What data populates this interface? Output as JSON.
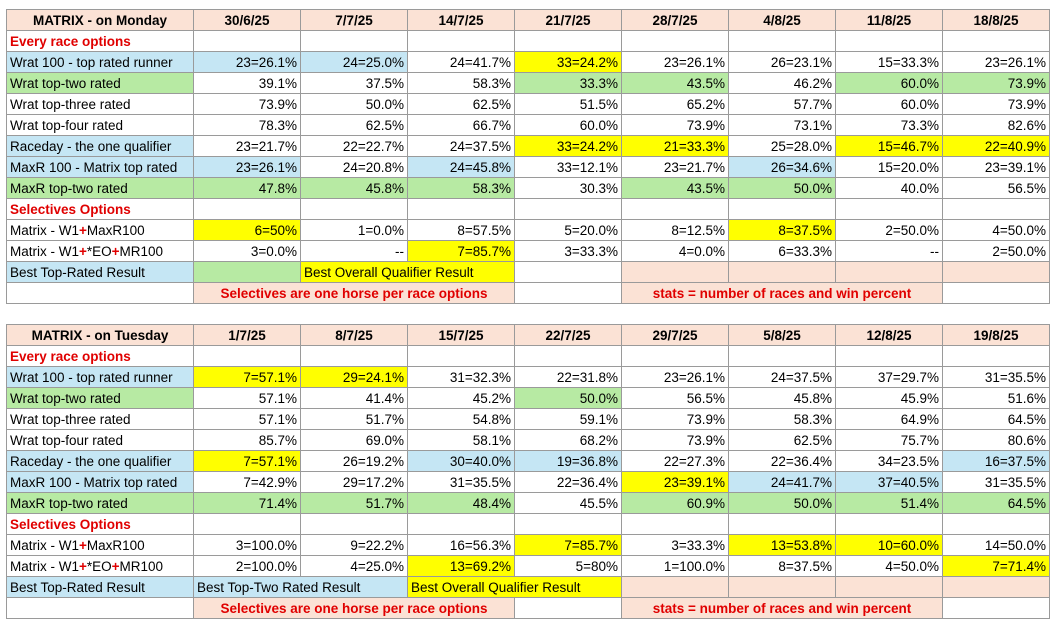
{
  "monday": {
    "title": "MATRIX - on Monday",
    "dates": [
      "30/6/25",
      "7/7/25",
      "14/7/25",
      "21/7/25",
      "28/7/25",
      "4/8/25",
      "11/8/25",
      "18/8/25"
    ],
    "every_race_label": "Every race options",
    "rows": [
      {
        "label": "Wrat 100 - top rated runner",
        "label_color": "blue",
        "values": [
          "23=26.1%",
          "24=25.0%",
          "24=41.7%",
          "33=24.2%",
          "23=26.1%",
          "26=23.1%",
          "15=33.3%",
          "23=26.1%"
        ],
        "colors": [
          "blue",
          "blue",
          "",
          "yellow",
          "",
          "",
          "",
          ""
        ]
      },
      {
        "label": "Wrat top-two rated",
        "label_color": "green",
        "values": [
          "39.1%",
          "37.5%",
          "58.3%",
          "33.3%",
          "43.5%",
          "46.2%",
          "60.0%",
          "73.9%"
        ],
        "colors": [
          "",
          "",
          "",
          "green",
          "green",
          "",
          "green",
          "green"
        ]
      },
      {
        "label": "Wrat top-three rated",
        "label_color": "",
        "values": [
          "73.9%",
          "50.0%",
          "62.5%",
          "51.5%",
          "65.2%",
          "57.7%",
          "60.0%",
          "73.9%"
        ],
        "colors": [
          "",
          "",
          "",
          "",
          "",
          "",
          "",
          ""
        ]
      },
      {
        "label": "Wrat top-four rated",
        "label_color": "",
        "values": [
          "78.3%",
          "62.5%",
          "66.7%",
          "60.0%",
          "73.9%",
          "73.1%",
          "73.3%",
          "82.6%"
        ],
        "colors": [
          "",
          "",
          "",
          "",
          "",
          "",
          "",
          ""
        ]
      },
      {
        "label": "Raceday - the one qualifier",
        "label_color": "blue",
        "values": [
          "23=21.7%",
          "22=22.7%",
          "24=37.5%",
          "33=24.2%",
          "21=33.3%",
          "25=28.0%",
          "15=46.7%",
          "22=40.9%"
        ],
        "colors": [
          "",
          "",
          "",
          "yellow",
          "yellow",
          "",
          "yellow",
          "yellow"
        ]
      },
      {
        "label": "MaxR 100 - Matrix top rated",
        "label_color": "blue",
        "values": [
          "23=26.1%",
          "24=20.8%",
          "24=45.8%",
          "33=12.1%",
          "23=21.7%",
          "26=34.6%",
          "15=20.0%",
          "23=39.1%"
        ],
        "colors": [
          "blue",
          "",
          "blue",
          "",
          "",
          "blue",
          "",
          ""
        ]
      },
      {
        "label": "MaxR top-two rated",
        "label_color": "green",
        "values": [
          "47.8%",
          "45.8%",
          "58.3%",
          "30.3%",
          "43.5%",
          "50.0%",
          "40.0%",
          "56.5%"
        ],
        "colors": [
          "green",
          "green",
          "green",
          "",
          "green",
          "green",
          "",
          ""
        ]
      }
    ],
    "selectives_label": "Selectives Options",
    "sel_rows": [
      {
        "prefix": "Matrix - W1",
        "plus1": "+",
        "mid": "MaxR100",
        "plus2": "",
        "tail": "",
        "values": [
          "6=50%",
          "1=0.0%",
          "8=57.5%",
          "5=20.0%",
          "8=12.5%",
          "8=37.5%",
          "2=50.0%",
          "4=50.0%"
        ],
        "colors": [
          "yellow",
          "",
          "",
          "",
          "",
          "yellow",
          "",
          ""
        ]
      },
      {
        "prefix": "Matrix - W1",
        "plus1": "+",
        "mid": "*EO",
        "plus2": "+",
        "tail": "MR100",
        "values": [
          "3=0.0%",
          "--",
          "7=85.7%",
          "3=33.3%",
          "4=0.0%",
          "6=33.3%",
          "--",
          "2=50.0%"
        ],
        "colors": [
          "",
          "",
          "yellow",
          "",
          "",
          "",
          "",
          ""
        ]
      }
    ],
    "legend": {
      "best_top_rated": "Best Top-Rated Result",
      "best_overall": "Best Overall Qualifier Result"
    },
    "note_left": "Selectives are one horse per race options",
    "note_right": "stats = number of races and win percent"
  },
  "tuesday": {
    "title": "MATRIX - on Tuesday",
    "dates": [
      "1/7/25",
      "8/7/25",
      "15/7/25",
      "22/7/25",
      "29/7/25",
      "5/8/25",
      "12/8/25",
      "19/8/25"
    ],
    "every_race_label": "Every race options",
    "rows": [
      {
        "label": "Wrat 100 - top rated runner",
        "label_color": "blue",
        "values": [
          "7=57.1%",
          "29=24.1%",
          "31=32.3%",
          "22=31.8%",
          "23=26.1%",
          "24=37.5%",
          "37=29.7%",
          "31=35.5%"
        ],
        "colors": [
          "yellow",
          "yellow",
          "",
          "",
          "",
          "",
          "",
          ""
        ]
      },
      {
        "label": "Wrat top-two rated",
        "label_color": "green",
        "values": [
          "57.1%",
          "41.4%",
          "45.2%",
          "50.0%",
          "56.5%",
          "45.8%",
          "45.9%",
          "51.6%"
        ],
        "colors": [
          "",
          "",
          "",
          "green",
          "",
          "",
          "",
          ""
        ]
      },
      {
        "label": "Wrat top-three rated",
        "label_color": "",
        "values": [
          "57.1%",
          "51.7%",
          "54.8%",
          "59.1%",
          "73.9%",
          "58.3%",
          "64.9%",
          "64.5%"
        ],
        "colors": [
          "",
          "",
          "",
          "",
          "",
          "",
          "",
          ""
        ]
      },
      {
        "label": "Wrat top-four rated",
        "label_color": "",
        "values": [
          "85.7%",
          "69.0%",
          "58.1%",
          "68.2%",
          "73.9%",
          "62.5%",
          "75.7%",
          "80.6%"
        ],
        "colors": [
          "",
          "",
          "",
          "",
          "",
          "",
          "",
          ""
        ]
      },
      {
        "label": "Raceday - the one qualifier",
        "label_color": "blue",
        "values": [
          "7=57.1%",
          "26=19.2%",
          "30=40.0%",
          "19=36.8%",
          "22=27.3%",
          "22=36.4%",
          "34=23.5%",
          "16=37.5%"
        ],
        "colors": [
          "yellow",
          "",
          "blue",
          "blue",
          "",
          "",
          "",
          "blue"
        ]
      },
      {
        "label": "MaxR 100 - Matrix top rated",
        "label_color": "blue",
        "values": [
          "7=42.9%",
          "29=17.2%",
          "31=35.5%",
          "22=36.4%",
          "23=39.1%",
          "24=41.7%",
          "37=40.5%",
          "31=35.5%"
        ],
        "colors": [
          "",
          "",
          "",
          "",
          "yellow",
          "blue",
          "blue",
          ""
        ]
      },
      {
        "label": "MaxR top-two rated",
        "label_color": "green",
        "values": [
          "71.4%",
          "51.7%",
          "48.4%",
          "45.5%",
          "60.9%",
          "50.0%",
          "51.4%",
          "64.5%"
        ],
        "colors": [
          "green",
          "green",
          "green",
          "",
          "green",
          "green",
          "green",
          "green"
        ]
      }
    ],
    "selectives_label": "Selectives Options",
    "sel_rows": [
      {
        "prefix": "Matrix - W1",
        "plus1": "+",
        "mid": "MaxR100",
        "plus2": "",
        "tail": "",
        "values": [
          "3=100.0%",
          "9=22.2%",
          "16=56.3%",
          "7=85.7%",
          "3=33.3%",
          "13=53.8%",
          "10=60.0%",
          "14=50.0%"
        ],
        "colors": [
          "",
          "",
          "",
          "yellow",
          "",
          "yellow",
          "yellow",
          ""
        ]
      },
      {
        "prefix": "Matrix - W1",
        "plus1": "+",
        "mid": "*EO",
        "plus2": "+",
        "tail": "MR100",
        "values": [
          "2=100.0%",
          "4=25.0%",
          "13=69.2%",
          "5=80%",
          "1=100.0%",
          "8=37.5%",
          "4=50.0%",
          "7=71.4%"
        ],
        "colors": [
          "",
          "",
          "yellow",
          "",
          "",
          "",
          "",
          "yellow"
        ]
      }
    ],
    "legend": {
      "best_top_rated": "Best Top-Rated Result",
      "best_top_two": "Best Top-Two Rated Result",
      "best_overall": "Best Overall Qualifier Result"
    },
    "note_left": "Selectives are one horse per race options",
    "note_right": "stats = number of races and win percent"
  }
}
